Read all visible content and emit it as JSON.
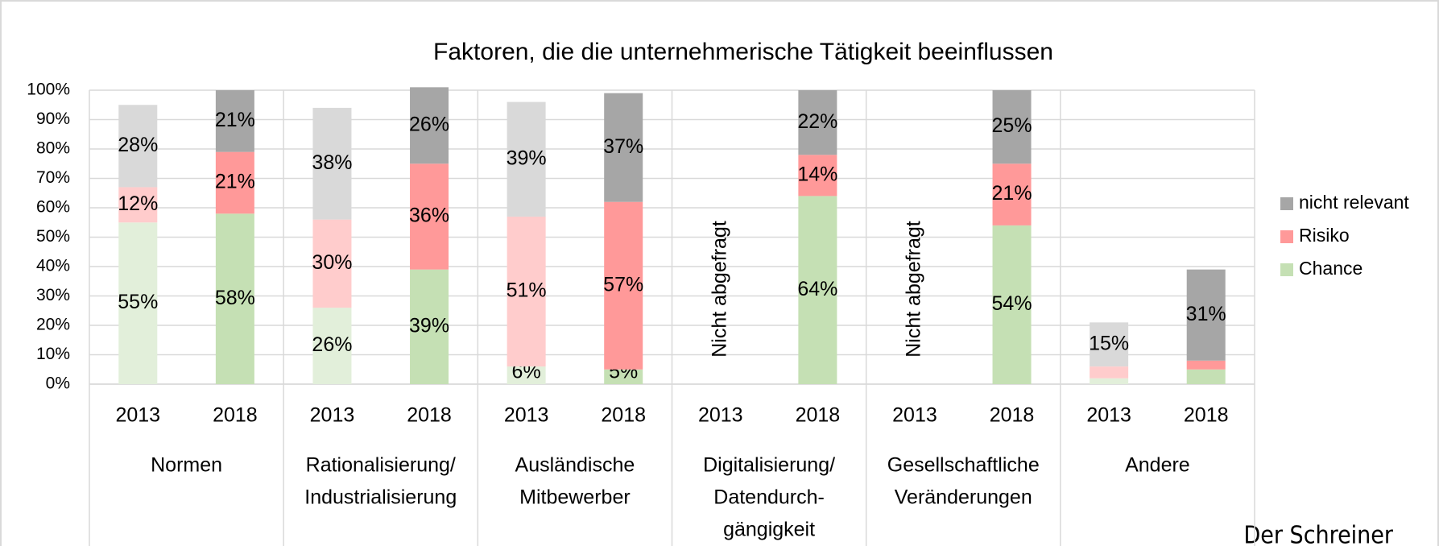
{
  "chart_data": {
    "type": "stacked_bar",
    "title": "Faktoren, die die unternehmerische Tätigkeit beeinflussen",
    "categories": [
      "2013",
      "2018",
      "2013",
      "2018",
      "2013",
      "2018",
      "2013",
      "2018",
      "2013",
      "2018",
      "2013",
      "2018"
    ],
    "groups": [
      [
        "Normen"
      ],
      [
        "Rationalisierung/",
        "Industrialisierung"
      ],
      [
        "Ausländische",
        "Mitbewerber"
      ],
      [
        "Digitalisierung/",
        "Datendurch-",
        "gängigkeit"
      ],
      [
        "Gesellschaftliche",
        "Veränderungen"
      ],
      [
        "Andere"
      ]
    ],
    "series": [
      {
        "name": "Chance",
        "color": "#c5e0b4",
        "colors": [
          "#e2efda",
          "#c5e0b4",
          "#e2efda",
          "#c5e0b4",
          "#e2efda",
          "#c5e0b4",
          "#e2efda",
          "#c5e0b4",
          "#e2efda",
          "#c5e0b4",
          "#e2efda",
          "#c5e0b4"
        ],
        "values": [
          55,
          58,
          26,
          39,
          6,
          5,
          null,
          64,
          null,
          54,
          2,
          5
        ],
        "value_labels": [
          "55%",
          "58%",
          "26%",
          "39%",
          "6%",
          "5%",
          null,
          "64%",
          null,
          "54%",
          null,
          null
        ]
      },
      {
        "name": "Risiko",
        "color": "#ff9999",
        "colors": [
          "#ffcccc",
          "#ff9999",
          "#ffcccc",
          "#ff9999",
          "#ffcccc",
          "#ff9999",
          "#ffcccc",
          "#ff9999",
          "#ffcccc",
          "#ff9999",
          "#ffcccc",
          "#ff9999"
        ],
        "values": [
          12,
          21,
          30,
          36,
          51,
          57,
          null,
          14,
          null,
          21,
          4,
          3
        ],
        "value_labels": [
          "12%",
          "21%",
          "30%",
          "36%",
          "51%",
          "57%",
          null,
          "14%",
          null,
          "21%",
          null,
          null
        ]
      },
      {
        "name": "nicht relevant",
        "color": "#a6a6a6",
        "colors": [
          "#d9d9d9",
          "#a6a6a6",
          "#d9d9d9",
          "#a6a6a6",
          "#d9d9d9",
          "#a6a6a6",
          "#d9d9d9",
          "#a6a6a6",
          "#d9d9d9",
          "#a6a6a6",
          "#d9d9d9",
          "#a6a6a6"
        ],
        "values": [
          28,
          21,
          38,
          26,
          39,
          37,
          null,
          22,
          null,
          25,
          15,
          31
        ],
        "value_labels": [
          "28%",
          "21%",
          "38%",
          "26%",
          "39%",
          "37%",
          null,
          "22%",
          null,
          "25%",
          "15%",
          "31%"
        ]
      }
    ],
    "annotations": [
      {
        "text": "Nicht abgefragt",
        "category": 6
      },
      {
        "text": "Nicht abgefragt",
        "category": 8
      }
    ],
    "watermark": "Der Schreiner",
    "ylim": [
      0,
      100
    ],
    "yticks": [
      {
        "value": 0,
        "label": "0%"
      },
      {
        "value": 10,
        "label": "10%"
      },
      {
        "value": 20,
        "label": "20%"
      },
      {
        "value": 30,
        "label": "30%"
      },
      {
        "value": 40,
        "label": "40%"
      },
      {
        "value": 50,
        "label": "50%"
      },
      {
        "value": 60,
        "label": "60%"
      },
      {
        "value": 70,
        "label": "70%"
      },
      {
        "value": 80,
        "label": "80%"
      },
      {
        "value": 90,
        "label": "90%"
      },
      {
        "value": 100,
        "label": "100%"
      }
    ],
    "grid": true,
    "legend": "right"
  }
}
